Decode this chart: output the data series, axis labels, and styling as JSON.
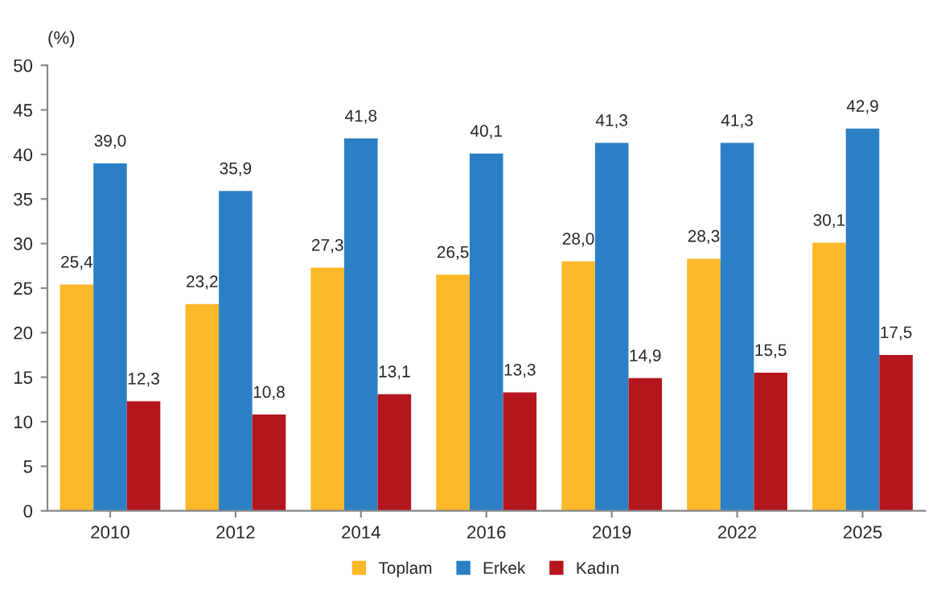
{
  "chart_data": {
    "type": "bar",
    "ylabel": "(%)",
    "categories": [
      "2010",
      "2012",
      "2014",
      "2016",
      "2019",
      "2022",
      "2025"
    ],
    "series": [
      {
        "name": "Toplam",
        "color": "#fbb829",
        "values": [
          25.4,
          23.2,
          27.3,
          26.5,
          28.0,
          28.3,
          30.1
        ],
        "value_labels": [
          "25,4",
          "23,2",
          "27,3",
          "26,5",
          "28,0",
          "28,3",
          "30,1"
        ]
      },
      {
        "name": "Erkek",
        "color": "#2b80c5",
        "values": [
          39.0,
          35.9,
          41.8,
          40.1,
          41.3,
          41.3,
          42.9
        ],
        "value_labels": [
          "39,0",
          "35,9",
          "41,8",
          "40,1",
          "41,3",
          "41,3",
          "42,9"
        ]
      },
      {
        "name": "Kadın",
        "color": "#b5161d",
        "values": [
          12.3,
          10.8,
          13.1,
          13.3,
          14.9,
          15.5,
          17.5
        ],
        "value_labels": [
          "12,3",
          "10,8",
          "13,1",
          "13,3",
          "14,9",
          "15,5",
          "17,5"
        ]
      }
    ],
    "ylim": [
      0,
      50
    ],
    "yticks": [
      0,
      5,
      10,
      15,
      20,
      25,
      30,
      35,
      40,
      45,
      50
    ],
    "grid": false,
    "legend": "bottom"
  }
}
